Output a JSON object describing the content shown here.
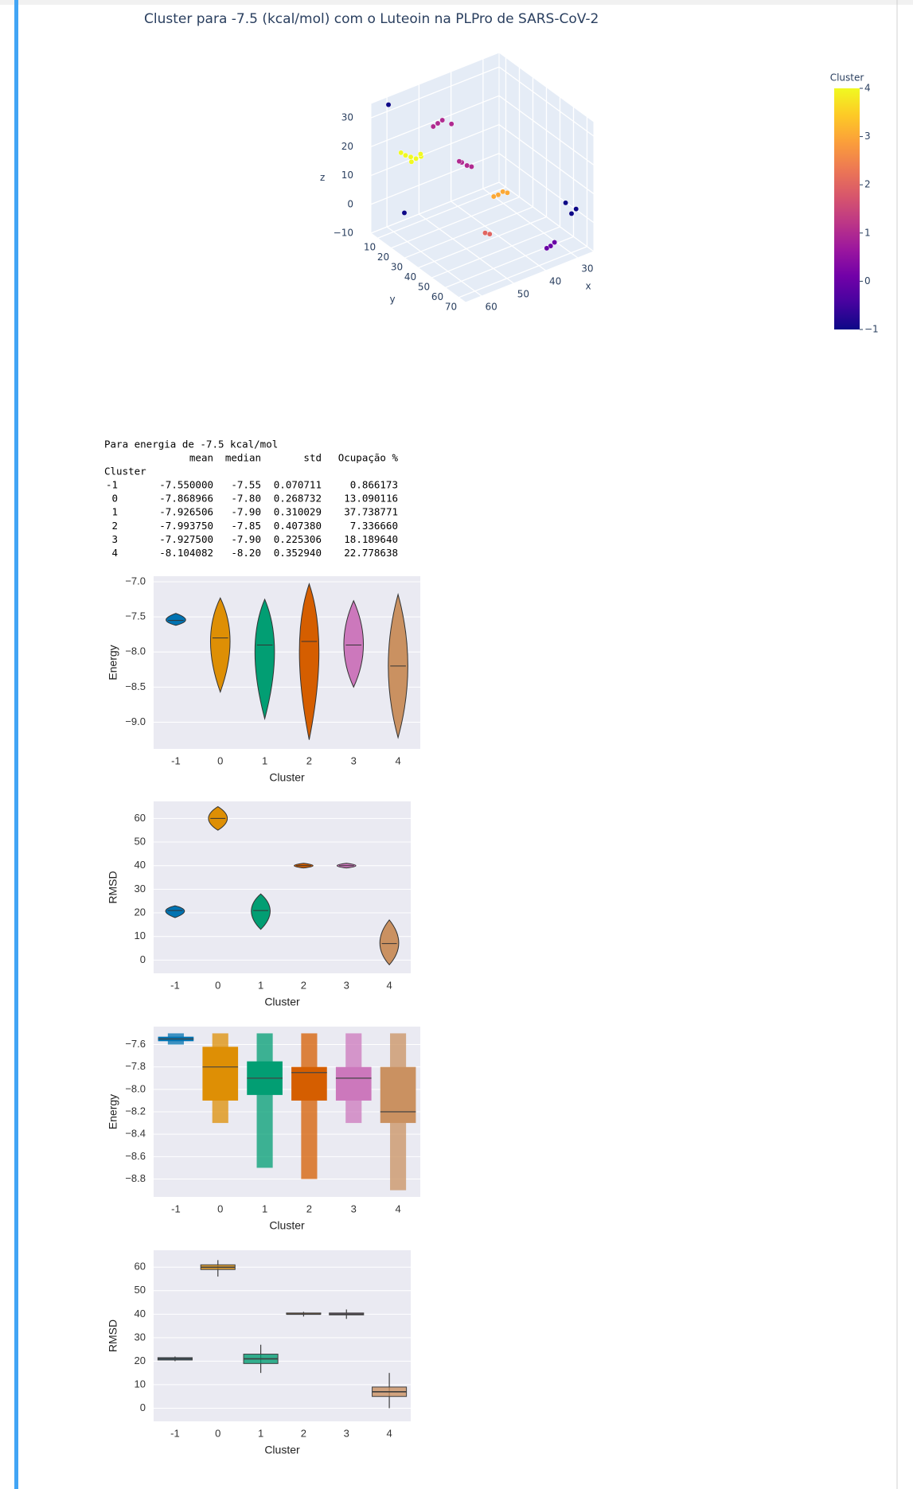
{
  "chart_data": [
    {
      "type": "scatter3d",
      "title": "Cluster para -7.5 (kcal/mol) com o Luteoin na PLPro de SARS-CoV-2",
      "x_label": "x",
      "y_label": "y",
      "z_label": "z",
      "xlim": [
        25,
        65
      ],
      "ylim": [
        5,
        75
      ],
      "zlim": [
        -10,
        35
      ],
      "xticks": [
        30,
        40,
        50,
        60
      ],
      "yticks": [
        10,
        20,
        30,
        40,
        50,
        60,
        70
      ],
      "zticks": [
        {
          "value": -10,
          "label": "−10"
        },
        0,
        10,
        20,
        30
      ],
      "x": [
        57,
        58,
        56,
        54,
        59,
        55,
        57,
        53,
        52,
        54,
        50,
        47,
        46,
        48,
        45,
        43,
        42,
        44,
        41,
        53,
        52,
        37,
        36,
        38,
        29,
        28,
        59,
        61,
        30
      ],
      "y": [
        15.5,
        14,
        17,
        16,
        13,
        18,
        16,
        26,
        27,
        25,
        29,
        29.5,
        31,
        30,
        32,
        47,
        48,
        46,
        49,
        61,
        62,
        71.5,
        72,
        71,
        68,
        69,
        15.5,
        8.5,
        66
      ],
      "z": [
        16.5,
        17,
        16,
        15.5,
        18,
        17.5,
        15,
        30,
        31,
        29,
        29.5,
        15,
        14,
        16,
        13.5,
        8,
        9,
        7.5,
        8.5,
        4,
        3.5,
        -4,
        -3,
        -4.5,
        2.5,
        4,
        -2,
        34,
        6
      ],
      "values": [
        4,
        4,
        4,
        4,
        4,
        4,
        4,
        1,
        1,
        1,
        1,
        1,
        1,
        1,
        1,
        3,
        3,
        3,
        3,
        2,
        2,
        0,
        0,
        0,
        -1,
        -1,
        -1,
        -1,
        -1
      ],
      "colorbar_title": "Cluster",
      "clim": [
        -1,
        4
      ],
      "colorbar_ticks": [
        {
          "value": -1,
          "label": "−1"
        },
        0,
        1,
        2,
        3,
        4
      ],
      "colorscale": [
        "#0d0887",
        "#46039f",
        "#7201a8",
        "#9c179e",
        "#bd3786",
        "#d8576b",
        "#ed7953",
        "#fb9f3a",
        "#fdca26",
        "#f0f921"
      ]
    },
    {
      "type": "violin",
      "x_label": "Cluster",
      "y_label": "Energy",
      "categories": [
        "-1",
        "0",
        "1",
        "2",
        "3",
        "4"
      ],
      "colors": [
        "#0173b2",
        "#de8f05",
        "#029e73",
        "#d55e00",
        "#cc78bc",
        "#ca9161"
      ],
      "ylim": [
        -9.38,
        -6.92
      ],
      "yticks": [
        {
          "value": -7.0,
          "label": "−7.0"
        },
        {
          "value": -7.5,
          "label": "−7.5"
        },
        {
          "value": -8.0,
          "label": "−8.0"
        },
        {
          "value": -8.5,
          "label": "−8.5"
        },
        {
          "value": -9.0,
          "label": "−9.0"
        }
      ],
      "max": [
        -7.45,
        -7.23,
        -7.25,
        -7.03,
        -7.27,
        -7.18
      ],
      "min": [
        -7.62,
        -8.57,
        -8.95,
        -9.25,
        -8.5,
        -9.22
      ],
      "median": [
        -7.55,
        -7.8,
        -7.9,
        -7.85,
        -7.9,
        -8.2
      ]
    },
    {
      "type": "violin",
      "x_label": "Cluster",
      "y_label": "RMSD",
      "categories": [
        "-1",
        "0",
        "1",
        "2",
        "3",
        "4"
      ],
      "colors": [
        "#0173b2",
        "#de8f05",
        "#029e73",
        "#d55e00",
        "#cc78bc",
        "#ca9161"
      ],
      "ylim": [
        -5.6,
        67.2
      ],
      "yticks": [
        0,
        10,
        20,
        30,
        40,
        50,
        60
      ],
      "max": [
        23,
        65,
        28,
        41,
        41,
        17
      ],
      "min": [
        18,
        55,
        13,
        39,
        39,
        -2
      ],
      "median": [
        21,
        60,
        21,
        40,
        40,
        7
      ]
    },
    {
      "type": "boxen",
      "x_label": "Cluster",
      "y_label": "Energy",
      "categories": [
        "-1",
        "0",
        "1",
        "2",
        "3",
        "4"
      ],
      "colors": [
        "#0173b2",
        "#de8f05",
        "#029e73",
        "#d55e00",
        "#cc78bc",
        "#ca9161"
      ],
      "ylim": [
        -8.96,
        -7.44
      ],
      "yticks": [
        {
          "value": -7.6,
          "label": "−7.6"
        },
        {
          "value": -7.8,
          "label": "−7.8"
        },
        {
          "value": -8.0,
          "label": "−8.0"
        },
        {
          "value": -8.2,
          "label": "−8.2"
        },
        {
          "value": -8.4,
          "label": "−8.4"
        },
        {
          "value": -8.6,
          "label": "−8.6"
        },
        {
          "value": -8.8,
          "label": "−8.8"
        }
      ],
      "max": [
        -7.5,
        -7.5,
        -7.5,
        -7.5,
        -7.5,
        -7.5
      ],
      "q3": [
        -7.53,
        -7.62,
        -7.75,
        -7.8,
        -7.8,
        -7.8
      ],
      "median": [
        -7.55,
        -7.8,
        -7.9,
        -7.85,
        -7.9,
        -8.2
      ],
      "q1": [
        -7.57,
        -8.1,
        -8.05,
        -8.1,
        -8.1,
        -8.3
      ],
      "min": [
        -7.6,
        -8.3,
        -8.7,
        -8.8,
        -8.3,
        -8.9
      ]
    },
    {
      "type": "box",
      "x_label": "Cluster",
      "y_label": "RMSD",
      "categories": [
        "-1",
        "0",
        "1",
        "2",
        "3",
        "4"
      ],
      "colors": [
        "#0173b2",
        "#de8f05",
        "#029e73",
        "#d55e00",
        "#cc78bc",
        "#ca9161"
      ],
      "ylim": [
        -5.6,
        67.2
      ],
      "yticks": [
        0,
        10,
        20,
        30,
        40,
        50,
        60
      ],
      "max": [
        22,
        63,
        27,
        41,
        42,
        15
      ],
      "q3": [
        21.5,
        61,
        23,
        40.5,
        40.5,
        9
      ],
      "median": [
        21,
        60,
        21,
        40,
        40,
        7
      ],
      "q1": [
        20.5,
        59,
        19,
        40,
        39.7,
        5
      ],
      "min": [
        20,
        56,
        15,
        39,
        38,
        0
      ]
    }
  ],
  "table": {
    "caption": "Para energia de -7.5 kcal/mol",
    "index_name": "Cluster",
    "columns": [
      "mean",
      "median",
      "std",
      "Ocupação %"
    ],
    "index": [
      "-1",
      "0",
      "1",
      "2",
      "3",
      "4"
    ],
    "rows": [
      [
        "-7.550000",
        "-7.55",
        "0.070711",
        "0.866173"
      ],
      [
        "-7.868966",
        "-7.80",
        "0.268732",
        "13.090116"
      ],
      [
        "-7.926506",
        "-7.90",
        "0.310029",
        "37.738771"
      ],
      [
        "-7.993750",
        "-7.85",
        "0.407380",
        "7.336660"
      ],
      [
        "-7.927500",
        "-7.90",
        "0.225306",
        "18.189640"
      ],
      [
        "-8.104082",
        "-8.20",
        "0.352940",
        "22.778638"
      ]
    ]
  }
}
